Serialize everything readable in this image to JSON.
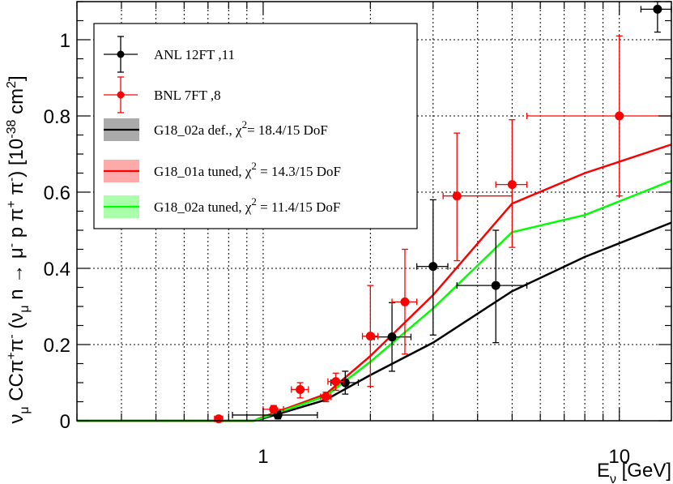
{
  "chart_data": {
    "type": "scatter",
    "x_scale": "log",
    "xlim": [
      0.3,
      14.0
    ],
    "ylim": [
      0,
      1.1
    ],
    "grid": true,
    "legend_position": "top-left",
    "xlabel": "E_ν [GeV]",
    "ylabel": "ν_μ CCπ⁺π⁻ (ν_μ n → μ⁻ p π⁺ π⁻) [10⁻³⁸ cm²]",
    "x_ticks": [
      {
        "value": 1,
        "label": "1"
      },
      {
        "value": 10,
        "label": "10"
      }
    ],
    "y_ticks": [
      {
        "value": 0,
        "label": "0"
      },
      {
        "value": 0.2,
        "label": "0.2"
      },
      {
        "value": 0.4,
        "label": "0.4"
      },
      {
        "value": 0.6,
        "label": "0.6"
      },
      {
        "value": 0.8,
        "label": "0.8"
      },
      {
        "value": 1.0,
        "label": "1"
      }
    ],
    "data_series": [
      {
        "name": "ANL 12FT ,11",
        "color": "#000000",
        "points": [
          {
            "x": 1.1,
            "y": 0.015,
            "xerr": [
              0.82,
              1.42
            ],
            "yerr": [
              0.005,
              0.025
            ]
          },
          {
            "x": 1.7,
            "y": 0.1,
            "xerr": [
              1.55,
              1.85
            ],
            "yerr": [
              0.07,
              0.13
            ]
          },
          {
            "x": 2.3,
            "y": 0.22,
            "xerr": [
              2.05,
              2.6
            ],
            "yerr": [
              0.13,
              0.31
            ]
          },
          {
            "x": 3.0,
            "y": 0.405,
            "xerr": [
              2.7,
              3.3
            ],
            "yerr": [
              0.225,
              0.58
            ]
          },
          {
            "x": 4.5,
            "y": 0.355,
            "xerr": [
              3.5,
              5.5
            ],
            "yerr": [
              0.205,
              0.5
            ]
          },
          {
            "x": 12.8,
            "y": 1.08,
            "xerr": [
              11.5,
              14.0
            ],
            "yerr": [
              1.02,
              1.1
            ]
          }
        ]
      },
      {
        "name": "BNL 7FT ,8",
        "color": "#ff0000",
        "points": [
          {
            "x": 0.75,
            "y": 0.005,
            "xerr": [
              0.73,
              0.77
            ],
            "yerr": [
              0.0,
              0.01
            ]
          },
          {
            "x": 1.07,
            "y": 0.03,
            "xerr": [
              1.0,
              1.14
            ],
            "yerr": [
              0.02,
              0.04
            ]
          },
          {
            "x": 1.27,
            "y": 0.082,
            "xerr": [
              1.2,
              1.34
            ],
            "yerr": [
              0.06,
              0.1
            ]
          },
          {
            "x": 1.5,
            "y": 0.063,
            "xerr": [
              1.45,
              1.55
            ],
            "yerr": [
              0.05,
              0.075
            ]
          },
          {
            "x": 1.6,
            "y": 0.103,
            "xerr": [
              1.52,
              1.68
            ],
            "yerr": [
              0.08,
              0.125
            ]
          },
          {
            "x": 2.0,
            "y": 0.222,
            "xerr": [
              1.9,
              2.1
            ],
            "yerr": [
              0.09,
              0.355
            ]
          },
          {
            "x": 2.5,
            "y": 0.312,
            "xerr": [
              2.3,
              2.7
            ],
            "yerr": [
              0.175,
              0.45
            ]
          },
          {
            "x": 3.5,
            "y": 0.59,
            "xerr": [
              3.2,
              5.0
            ],
            "yerr": [
              0.42,
              0.755
            ]
          },
          {
            "x": 5.0,
            "y": 0.62,
            "xerr": [
              4.5,
              5.5
            ],
            "yerr": [
              0.455,
              0.79
            ]
          },
          {
            "x": 10.0,
            "y": 0.8,
            "xerr": [
              5.5,
              14.0
            ],
            "yerr": [
              0.59,
              1.01
            ]
          }
        ]
      }
    ],
    "model_series": [
      {
        "name": "G18_02a def., χ²= 18.4/15 DoF",
        "color": "#000000",
        "band_color": "#aaaaaa",
        "points": [
          [
            0.3,
            0.0
          ],
          [
            0.94,
            0.0
          ],
          [
            1.0,
            0.006
          ],
          [
            1.5,
            0.055
          ],
          [
            2.0,
            0.12
          ],
          [
            3.0,
            0.205
          ],
          [
            5.0,
            0.34
          ],
          [
            8.0,
            0.43
          ],
          [
            14.0,
            0.52
          ]
        ]
      },
      {
        "name": "G18_01a tuned, χ² = 14.3/15 DoF",
        "color": "#ff0000",
        "band_color": "#ffaaaa",
        "points": [
          [
            0.3,
            0.0
          ],
          [
            0.94,
            0.0
          ],
          [
            1.0,
            0.01
          ],
          [
            1.5,
            0.07
          ],
          [
            2.0,
            0.17
          ],
          [
            3.0,
            0.33
          ],
          [
            5.0,
            0.57
          ],
          [
            8.0,
            0.65
          ],
          [
            14.0,
            0.725
          ]
        ]
      },
      {
        "name": "G18_02a tuned, χ² = 11.4/15 DoF",
        "color": "#00ff00",
        "band_color": "#aaffaa",
        "points": [
          [
            0.3,
            0.0
          ],
          [
            0.94,
            0.0
          ],
          [
            1.0,
            0.008
          ],
          [
            1.5,
            0.065
          ],
          [
            2.0,
            0.155
          ],
          [
            3.0,
            0.295
          ],
          [
            5.0,
            0.495
          ],
          [
            8.0,
            0.54
          ],
          [
            14.0,
            0.63
          ]
        ]
      }
    ]
  }
}
